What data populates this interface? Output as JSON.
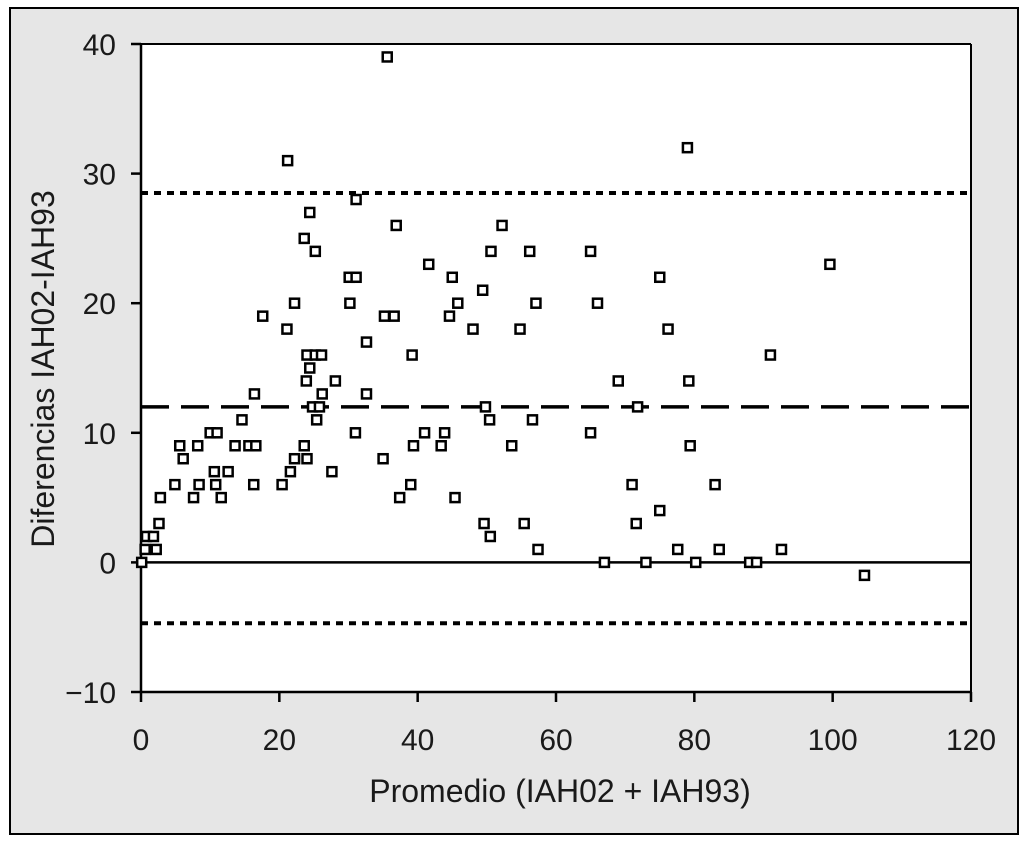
{
  "chart_data": {
    "type": "scatter",
    "title": "",
    "xlabel": "Promedio (IAH02 + IAH93)",
    "ylabel": "Diferencias IAH02-IAH93",
    "xlim": [
      0,
      120
    ],
    "ylim": [
      -10,
      40
    ],
    "x_ticks": [
      0,
      20,
      40,
      60,
      80,
      100,
      120
    ],
    "x_tick_labels": [
      "0",
      "20",
      "40",
      "60",
      "80",
      "100",
      "120"
    ],
    "y_ticks": [
      -10,
      0,
      10,
      20,
      30,
      40
    ],
    "y_tick_labels": [
      "−10",
      "0",
      "10",
      "20",
      "30",
      "40"
    ],
    "grid": false,
    "colors": {
      "frame_background": "#e6e6e6",
      "plot_background": "#ffffff",
      "ink": "#000000"
    },
    "reference_lines": [
      {
        "y": 0,
        "style": "solid"
      },
      {
        "y": 12,
        "style": "dashed"
      },
      {
        "y": 28.5,
        "style": "dotted"
      },
      {
        "y": -4.7,
        "style": "dotted"
      }
    ],
    "marker": "open-square",
    "points": [
      [
        0.1,
        0
      ],
      [
        0.6,
        1
      ],
      [
        0.8,
        2
      ],
      [
        1.8,
        2
      ],
      [
        2.2,
        1
      ],
      [
        2.6,
        3
      ],
      [
        2.8,
        5
      ],
      [
        4.9,
        6
      ],
      [
        5.6,
        9
      ],
      [
        6.1,
        8
      ],
      [
        7.6,
        5
      ],
      [
        8.2,
        9
      ],
      [
        8.4,
        6
      ],
      [
        10,
        10
      ],
      [
        10.6,
        7
      ],
      [
        10.8,
        6
      ],
      [
        11,
        10
      ],
      [
        11.6,
        5
      ],
      [
        12.6,
        7
      ],
      [
        13.6,
        9
      ],
      [
        14.6,
        11
      ],
      [
        15.6,
        9
      ],
      [
        16.3,
        6
      ],
      [
        16.4,
        13
      ],
      [
        16.6,
        9
      ],
      [
        17.6,
        19
      ],
      [
        20.4,
        6
      ],
      [
        21.1,
        18
      ],
      [
        21.2,
        31
      ],
      [
        21.6,
        7
      ],
      [
        22.2,
        20
      ],
      [
        22.2,
        8
      ],
      [
        23.6,
        25
      ],
      [
        23.6,
        9
      ],
      [
        23.9,
        14
      ],
      [
        24,
        8
      ],
      [
        24,
        16
      ],
      [
        24.4,
        15
      ],
      [
        24.4,
        27
      ],
      [
        24.8,
        12
      ],
      [
        25.2,
        16
      ],
      [
        25.2,
        24
      ],
      [
        25.4,
        11
      ],
      [
        25.8,
        12
      ],
      [
        26.1,
        16
      ],
      [
        26.2,
        13
      ],
      [
        27.6,
        7
      ],
      [
        28.1,
        14
      ],
      [
        30.1,
        22
      ],
      [
        30.2,
        20
      ],
      [
        31,
        10
      ],
      [
        31.1,
        22
      ],
      [
        31.1,
        28
      ],
      [
        32.6,
        17
      ],
      [
        32.6,
        13
      ],
      [
        35,
        8
      ],
      [
        35.2,
        19
      ],
      [
        35.6,
        39
      ],
      [
        36.6,
        19
      ],
      [
        36.9,
        26
      ],
      [
        37.4,
        5
      ],
      [
        39,
        6
      ],
      [
        39.2,
        16
      ],
      [
        39.4,
        9
      ],
      [
        41,
        10
      ],
      [
        41.6,
        23
      ],
      [
        43.4,
        9
      ],
      [
        43.9,
        10
      ],
      [
        44.6,
        19
      ],
      [
        45,
        22
      ],
      [
        45.4,
        5
      ],
      [
        45.8,
        20
      ],
      [
        48,
        18
      ],
      [
        49.4,
        21
      ],
      [
        49.6,
        3
      ],
      [
        49.8,
        12
      ],
      [
        50.4,
        11
      ],
      [
        50.5,
        2
      ],
      [
        50.6,
        24
      ],
      [
        52.2,
        26
      ],
      [
        53.6,
        9
      ],
      [
        54.8,
        18
      ],
      [
        55.4,
        3
      ],
      [
        56.2,
        24
      ],
      [
        56.6,
        11
      ],
      [
        57.1,
        20
      ],
      [
        57.4,
        1
      ],
      [
        65,
        24
      ],
      [
        65,
        10
      ],
      [
        66,
        20
      ],
      [
        67,
        0
      ],
      [
        69,
        14
      ],
      [
        71,
        6
      ],
      [
        71.6,
        3
      ],
      [
        71.8,
        12
      ],
      [
        73,
        0
      ],
      [
        75,
        22
      ],
      [
        75,
        4
      ],
      [
        76.2,
        18
      ],
      [
        77.6,
        1
      ],
      [
        79,
        32
      ],
      [
        79.2,
        14
      ],
      [
        79.4,
        9
      ],
      [
        80.2,
        0
      ],
      [
        83,
        6
      ],
      [
        83.6,
        1
      ],
      [
        88,
        0
      ],
      [
        89,
        0
      ],
      [
        91,
        16
      ],
      [
        92.6,
        1
      ],
      [
        99.6,
        23
      ],
      [
        104.6,
        -1
      ]
    ]
  }
}
